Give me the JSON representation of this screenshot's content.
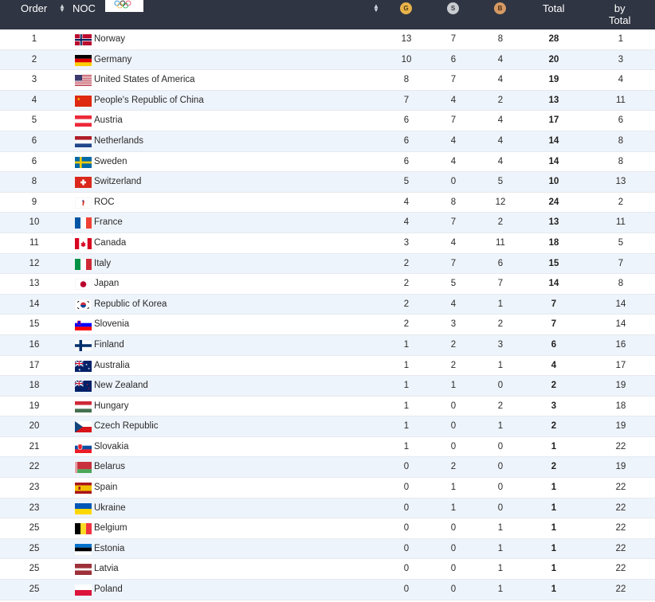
{
  "header": {
    "order_label": "Order",
    "noc_label": "NOC",
    "gold_label": "G",
    "silver_label": "S",
    "bronze_label": "B",
    "total_label": "Total",
    "rank_label_1": "by",
    "rank_label_2": "Total",
    "sort_icon": "sort-arrows-icon",
    "logo_icon": "olympic-rings-icon",
    "medal_colors": {
      "gold": "#e9b34a",
      "silver": "#c9ccd1",
      "bronze": "#d79a64"
    }
  },
  "rows": [
    {
      "order": "1",
      "flag": "flag-norway-icon",
      "name": "Norway",
      "gold": "13",
      "silver": "7",
      "bronze": "8",
      "total": "28",
      "rank": "1"
    },
    {
      "order": "2",
      "flag": "flag-germany-icon",
      "name": "Germany",
      "gold": "10",
      "silver": "6",
      "bronze": "4",
      "total": "20",
      "rank": "3"
    },
    {
      "order": "3",
      "flag": "flag-usa-icon",
      "name": "United States of America",
      "gold": "8",
      "silver": "7",
      "bronze": "4",
      "total": "19",
      "rank": "4"
    },
    {
      "order": "4",
      "flag": "flag-china-icon",
      "name": "People's Republic of China",
      "gold": "7",
      "silver": "4",
      "bronze": "2",
      "total": "13",
      "rank": "11"
    },
    {
      "order": "5",
      "flag": "flag-austria-icon",
      "name": "Austria",
      "gold": "6",
      "silver": "7",
      "bronze": "4",
      "total": "17",
      "rank": "6"
    },
    {
      "order": "6",
      "flag": "flag-netherlands-icon",
      "name": "Netherlands",
      "gold": "6",
      "silver": "4",
      "bronze": "4",
      "total": "14",
      "rank": "8"
    },
    {
      "order": "6",
      "flag": "flag-sweden-icon",
      "name": "Sweden",
      "gold": "6",
      "silver": "4",
      "bronze": "4",
      "total": "14",
      "rank": "8"
    },
    {
      "order": "8",
      "flag": "flag-switzerland-icon",
      "name": "Switzerland",
      "gold": "5",
      "silver": "0",
      "bronze": "5",
      "total": "10",
      "rank": "13"
    },
    {
      "order": "9",
      "flag": "flag-roc-icon",
      "name": "ROC",
      "gold": "4",
      "silver": "8",
      "bronze": "12",
      "total": "24",
      "rank": "2"
    },
    {
      "order": "10",
      "flag": "flag-france-icon",
      "name": "France",
      "gold": "4",
      "silver": "7",
      "bronze": "2",
      "total": "13",
      "rank": "11"
    },
    {
      "order": "11",
      "flag": "flag-canada-icon",
      "name": "Canada",
      "gold": "3",
      "silver": "4",
      "bronze": "11",
      "total": "18",
      "rank": "5"
    },
    {
      "order": "12",
      "flag": "flag-italy-icon",
      "name": "Italy",
      "gold": "2",
      "silver": "7",
      "bronze": "6",
      "total": "15",
      "rank": "7"
    },
    {
      "order": "13",
      "flag": "flag-japan-icon",
      "name": "Japan",
      "gold": "2",
      "silver": "5",
      "bronze": "7",
      "total": "14",
      "rank": "8"
    },
    {
      "order": "14",
      "flag": "flag-korea-icon",
      "name": "Republic of Korea",
      "gold": "2",
      "silver": "4",
      "bronze": "1",
      "total": "7",
      "rank": "14"
    },
    {
      "order": "15",
      "flag": "flag-slovenia-icon",
      "name": "Slovenia",
      "gold": "2",
      "silver": "3",
      "bronze": "2",
      "total": "7",
      "rank": "14"
    },
    {
      "order": "16",
      "flag": "flag-finland-icon",
      "name": "Finland",
      "gold": "1",
      "silver": "2",
      "bronze": "3",
      "total": "6",
      "rank": "16"
    },
    {
      "order": "17",
      "flag": "flag-australia-icon",
      "name": "Australia",
      "gold": "1",
      "silver": "2",
      "bronze": "1",
      "total": "4",
      "rank": "17"
    },
    {
      "order": "18",
      "flag": "flag-new-zealand-icon",
      "name": "New Zealand",
      "gold": "1",
      "silver": "1",
      "bronze": "0",
      "total": "2",
      "rank": "19"
    },
    {
      "order": "19",
      "flag": "flag-hungary-icon",
      "name": "Hungary",
      "gold": "1",
      "silver": "0",
      "bronze": "2",
      "total": "3",
      "rank": "18"
    },
    {
      "order": "20",
      "flag": "flag-czech-icon",
      "name": "Czech Republic",
      "gold": "1",
      "silver": "0",
      "bronze": "1",
      "total": "2",
      "rank": "19"
    },
    {
      "order": "21",
      "flag": "flag-slovakia-icon",
      "name": "Slovakia",
      "gold": "1",
      "silver": "0",
      "bronze": "0",
      "total": "1",
      "rank": "22"
    },
    {
      "order": "22",
      "flag": "flag-belarus-icon",
      "name": "Belarus",
      "gold": "0",
      "silver": "2",
      "bronze": "0",
      "total": "2",
      "rank": "19"
    },
    {
      "order": "23",
      "flag": "flag-spain-icon",
      "name": "Spain",
      "gold": "0",
      "silver": "1",
      "bronze": "0",
      "total": "1",
      "rank": "22"
    },
    {
      "order": "23",
      "flag": "flag-ukraine-icon",
      "name": "Ukraine",
      "gold": "0",
      "silver": "1",
      "bronze": "0",
      "total": "1",
      "rank": "22"
    },
    {
      "order": "25",
      "flag": "flag-belgium-icon",
      "name": "Belgium",
      "gold": "0",
      "silver": "0",
      "bronze": "1",
      "total": "1",
      "rank": "22"
    },
    {
      "order": "25",
      "flag": "flag-estonia-icon",
      "name": "Estonia",
      "gold": "0",
      "silver": "0",
      "bronze": "1",
      "total": "1",
      "rank": "22"
    },
    {
      "order": "25",
      "flag": "flag-latvia-icon",
      "name": "Latvia",
      "gold": "0",
      "silver": "0",
      "bronze": "1",
      "total": "1",
      "rank": "22"
    },
    {
      "order": "25",
      "flag": "flag-poland-icon",
      "name": "Poland",
      "gold": "0",
      "silver": "0",
      "bronze": "1",
      "total": "1",
      "rank": "22"
    }
  ]
}
